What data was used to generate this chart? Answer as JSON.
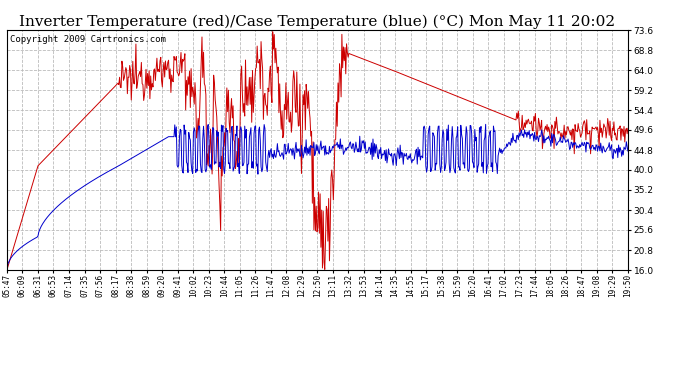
{
  "title": "Inverter Temperature (red)/Case Temperature (blue) (°C) Mon May 11 20:02",
  "copyright": "Copyright 2009 Cartronics.com",
  "yticks": [
    16.0,
    20.8,
    25.6,
    30.4,
    35.2,
    40.0,
    44.8,
    49.6,
    54.4,
    59.2,
    64.0,
    68.8,
    73.6
  ],
  "ylim": [
    16.0,
    73.6
  ],
  "xtick_labels": [
    "05:47",
    "06:09",
    "06:31",
    "06:53",
    "07:14",
    "07:35",
    "07:56",
    "08:17",
    "08:38",
    "08:59",
    "09:20",
    "09:41",
    "10:02",
    "10:23",
    "10:44",
    "11:05",
    "11:26",
    "11:47",
    "12:08",
    "12:29",
    "12:50",
    "13:11",
    "13:32",
    "13:53",
    "14:14",
    "14:35",
    "14:55",
    "15:17",
    "15:38",
    "15:59",
    "16:20",
    "16:41",
    "17:02",
    "17:23",
    "17:44",
    "18:05",
    "18:26",
    "18:47",
    "19:08",
    "19:29",
    "19:50"
  ],
  "background_color": "#ffffff",
  "plot_bg_color": "#ffffff",
  "grid_color": "#bbbbbb",
  "line_color_red": "#cc0000",
  "line_color_blue": "#0000cc",
  "title_fontsize": 11,
  "copyright_fontsize": 6.5
}
